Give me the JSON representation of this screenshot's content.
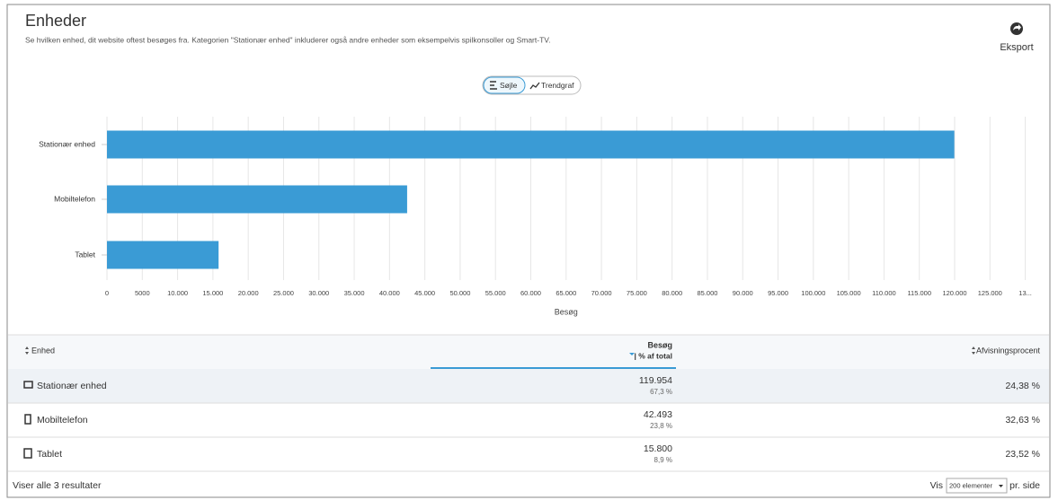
{
  "header": {
    "title": "Enheder",
    "subtitle": "Se hvilken enhed, dit website oftest besøges fra. Kategorien \"Stationær enhed\" inkluderer også andre enheder som eksempelvis spilkonsoller og Smart-TV.",
    "export": "Eksport"
  },
  "toggle": {
    "options": [
      "Søjle",
      "Trendgraf"
    ]
  },
  "chart_data": {
    "type": "bar",
    "orientation": "horizontal",
    "categories": [
      "Stationær enhed",
      "Mobiltelefon",
      "Tablet"
    ],
    "values": [
      119954,
      42493,
      15800
    ],
    "color": "#3a9bd5",
    "xlim": [
      0,
      130000
    ],
    "xticks": [
      0,
      5000,
      {
        "value": 10000,
        "label": "10.000"
      },
      {
        "value": 15000,
        "label": "15.000"
      },
      {
        "value": 20000,
        "label": "20.000"
      },
      {
        "value": 25000,
        "label": "25.000"
      },
      {
        "value": 30000,
        "label": "30.000"
      },
      {
        "value": 35000,
        "label": "35.000"
      },
      {
        "value": 40000,
        "label": "40.000"
      },
      {
        "value": 45000,
        "label": "45.000"
      },
      {
        "value": 50000,
        "label": "50.000"
      },
      {
        "value": 55000,
        "label": "55.000"
      },
      {
        "value": 60000,
        "label": "60.000"
      },
      {
        "value": 65000,
        "label": "65.000"
      },
      {
        "value": 70000,
        "label": "70.000"
      },
      {
        "value": 75000,
        "label": "75.000"
      },
      {
        "value": 80000,
        "label": "80.000"
      },
      {
        "value": 85000,
        "label": "85.000"
      },
      {
        "value": 90000,
        "label": "90.000"
      },
      {
        "value": 95000,
        "label": "95.000"
      },
      {
        "value": 100000,
        "label": "100.000"
      },
      {
        "value": 105000,
        "label": "105.000"
      },
      {
        "value": 110000,
        "label": "110.000"
      },
      {
        "value": 115000,
        "label": "115.000"
      },
      {
        "value": 120000,
        "label": "120.000"
      },
      {
        "value": 125000,
        "label": "125.000"
      },
      {
        "value": 130000,
        "label": "13..."
      }
    ],
    "xlabel": "Besøg",
    "grid": true
  },
  "table": {
    "columns": [
      "Enhed",
      {
        "title": "Besøg",
        "subtitle": "| % af total"
      },
      "Afvisningsprocent"
    ],
    "rows": [
      [
        "Stationær enhed",
        "119.954",
        "67,3 %",
        "24,38 %"
      ],
      [
        "Mobiltelefon",
        "42.493",
        "23,8 %",
        "32,63 %"
      ],
      [
        "Tablet",
        "15.800",
        "8,9 %",
        "23,52 %"
      ]
    ]
  },
  "footer": {
    "summary": "Viser alle 3 resultater",
    "per_page_prefix": "Vis",
    "per_page_option": "200 elementer",
    "per_page_suffix": "pr. side"
  }
}
